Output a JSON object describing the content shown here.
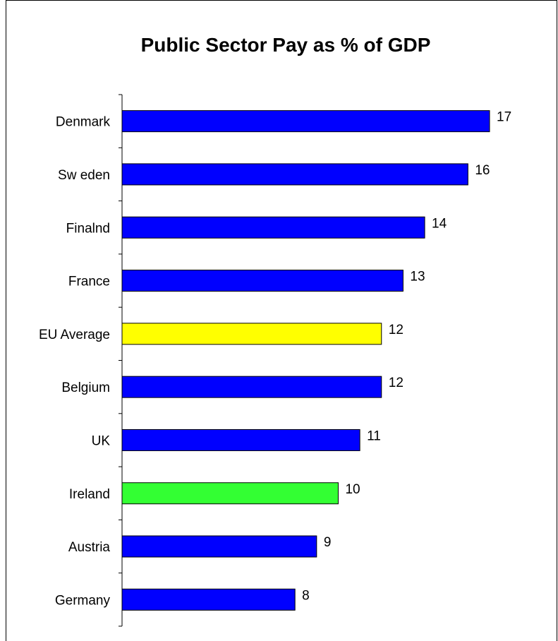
{
  "chart_data": {
    "type": "bar",
    "orientation": "horizontal",
    "title": "Public Sector Pay as % of GDP",
    "xlabel": "",
    "ylabel": "",
    "xlim": [
      0,
      17
    ],
    "categories": [
      "Denmark",
      "Sw eden",
      "Finalnd",
      "France",
      "EU Average",
      "Belgium",
      "UK",
      "Ireland",
      "Austria",
      "Germany"
    ],
    "values": [
      17,
      16,
      14,
      13,
      12,
      12,
      11,
      10,
      9,
      8
    ],
    "bar_colors": [
      "#0000ff",
      "#0000ff",
      "#0000ff",
      "#0000ff",
      "#ffff00",
      "#0000ff",
      "#0000ff",
      "#33ff33",
      "#0000ff",
      "#0000ff"
    ],
    "data_labels": [
      "17",
      "16",
      "14",
      "13",
      "12",
      "12",
      "11",
      "10",
      "9",
      "8"
    ],
    "grid": false,
    "legend": "none"
  }
}
